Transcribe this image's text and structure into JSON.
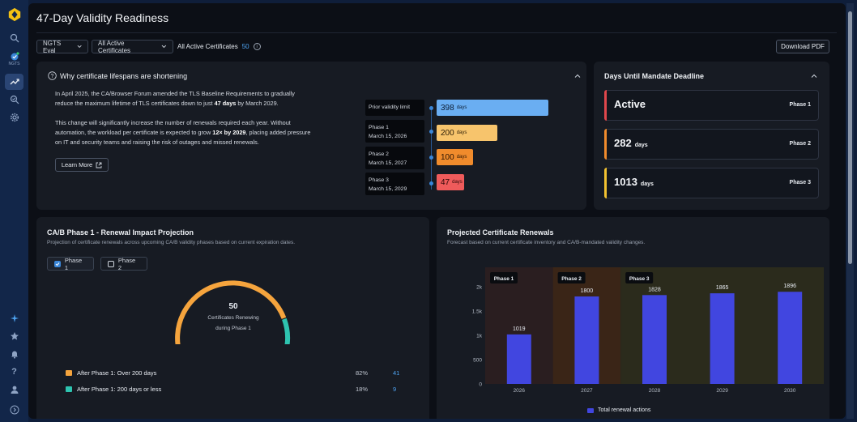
{
  "sidebar": {
    "ngts_label": "NGTS",
    "items": [
      "logo-icon",
      "search-icon",
      "ngts-icon",
      "workflow-icon",
      "discovery-icon",
      "settings-icon",
      "sparkle-icon",
      "star-icon",
      "bell-icon",
      "help-icon",
      "user-icon",
      "expand-icon"
    ]
  },
  "page": {
    "title": "47-Day Validity Readiness"
  },
  "filters": {
    "environment": "NGTS Eval",
    "certificates": "All Active Certificates",
    "summary_label": "All Active Certificates",
    "summary_count": "50",
    "download_label": "Download PDF"
  },
  "why_card": {
    "title": "Why certificate lifespans are shortening",
    "p1_pre": "In April 2025, the CA/Browser Forum amended the TLS Baseline Requirements to gradually reduce the maximum lifetime of TLS certificates down to just ",
    "p1_bold": "47 days",
    "p1_post": " by March 2029.",
    "p2_pre": "This change will significantly increase the number of renewals required each year. Without automation, the workload per certificate is expected to grow ",
    "p2_bold": "12× by 2029",
    "p2_post": ", placing added pressure on IT and security teams and raising the risk of outages and missed renewals.",
    "learn_more": "Learn More",
    "timeline": [
      {
        "label": "Prior validity limit",
        "date": "",
        "value": "398",
        "unit": "days",
        "color": "#6aaef2"
      },
      {
        "label": "Phase 1",
        "date": "March 15, 2026",
        "value": "200",
        "unit": "days",
        "color": "#f7c46c"
      },
      {
        "label": "Phase 2",
        "date": "March 15, 2027",
        "value": "100",
        "unit": "days",
        "color": "#f08b2c"
      },
      {
        "label": "Phase 3",
        "date": "March 15, 2029",
        "value": "47",
        "unit": "days",
        "color": "#ef5b5b"
      }
    ]
  },
  "deadline_card": {
    "title": "Days Until Mandate Deadline",
    "items": [
      {
        "value": "Active",
        "unit": "",
        "phase": "Phase 1",
        "color": "#e0474c"
      },
      {
        "value": "282",
        "unit": "days",
        "phase": "Phase 2",
        "color": "#f08b2c"
      },
      {
        "value": "1013",
        "unit": "days",
        "phase": "Phase 3",
        "color": "#f2c230"
      }
    ]
  },
  "impact_card": {
    "title": "CA/B Phase 1 - Renewal Impact Projection",
    "subtitle": "Projection of certificate renewals across upcoming CA/B validity phases based on current expiration dates.",
    "toggles": [
      {
        "label": "Phase 1",
        "checked": true
      },
      {
        "label": "Phase 2",
        "checked": false
      }
    ],
    "gauge": {
      "value": "50",
      "line1": "Certificates Renewing",
      "line2": "during Phase 1",
      "orange_share": 0.82,
      "teal_share": 0.18
    },
    "legend": [
      {
        "label": "After Phase 1: Over 200 days",
        "pct": "82%",
        "count": "41",
        "color": "#f5a43d"
      },
      {
        "label": "After Phase 1: 200 days or less",
        "pct": "18%",
        "count": "9",
        "color": "#2ec4b0"
      }
    ]
  },
  "renewals_card": {
    "title": "Projected Certificate Renewals",
    "subtitle": "Forecast based on current certificate inventory and CA/B-mandated validity changes.",
    "legend": "Total renewal actions"
  },
  "chart_data": {
    "type": "bar",
    "categories": [
      "2026",
      "2027",
      "2028",
      "2029",
      "2030"
    ],
    "series": [
      {
        "name": "Total renewal actions",
        "values": [
          1019,
          1800,
          1828,
          1865,
          1896
        ],
        "color": "#4146e0"
      }
    ],
    "ylim": [
      0,
      2400
    ],
    "yticks": [
      0,
      500,
      1000,
      1500,
      2000
    ],
    "ytick_labels": [
      "0",
      "500",
      "1k",
      "1.5k",
      "2k"
    ],
    "bands": [
      {
        "label": "Phase 1",
        "from": 0,
        "to": 1,
        "color": "#2a1e20"
      },
      {
        "label": "Phase 2",
        "from": 1,
        "to": 2,
        "color": "#3a2517"
      },
      {
        "label": "Phase 3",
        "from": 2,
        "to": 5,
        "color": "#2b2b1c"
      }
    ],
    "legend_position": "bottom",
    "grid": false
  }
}
